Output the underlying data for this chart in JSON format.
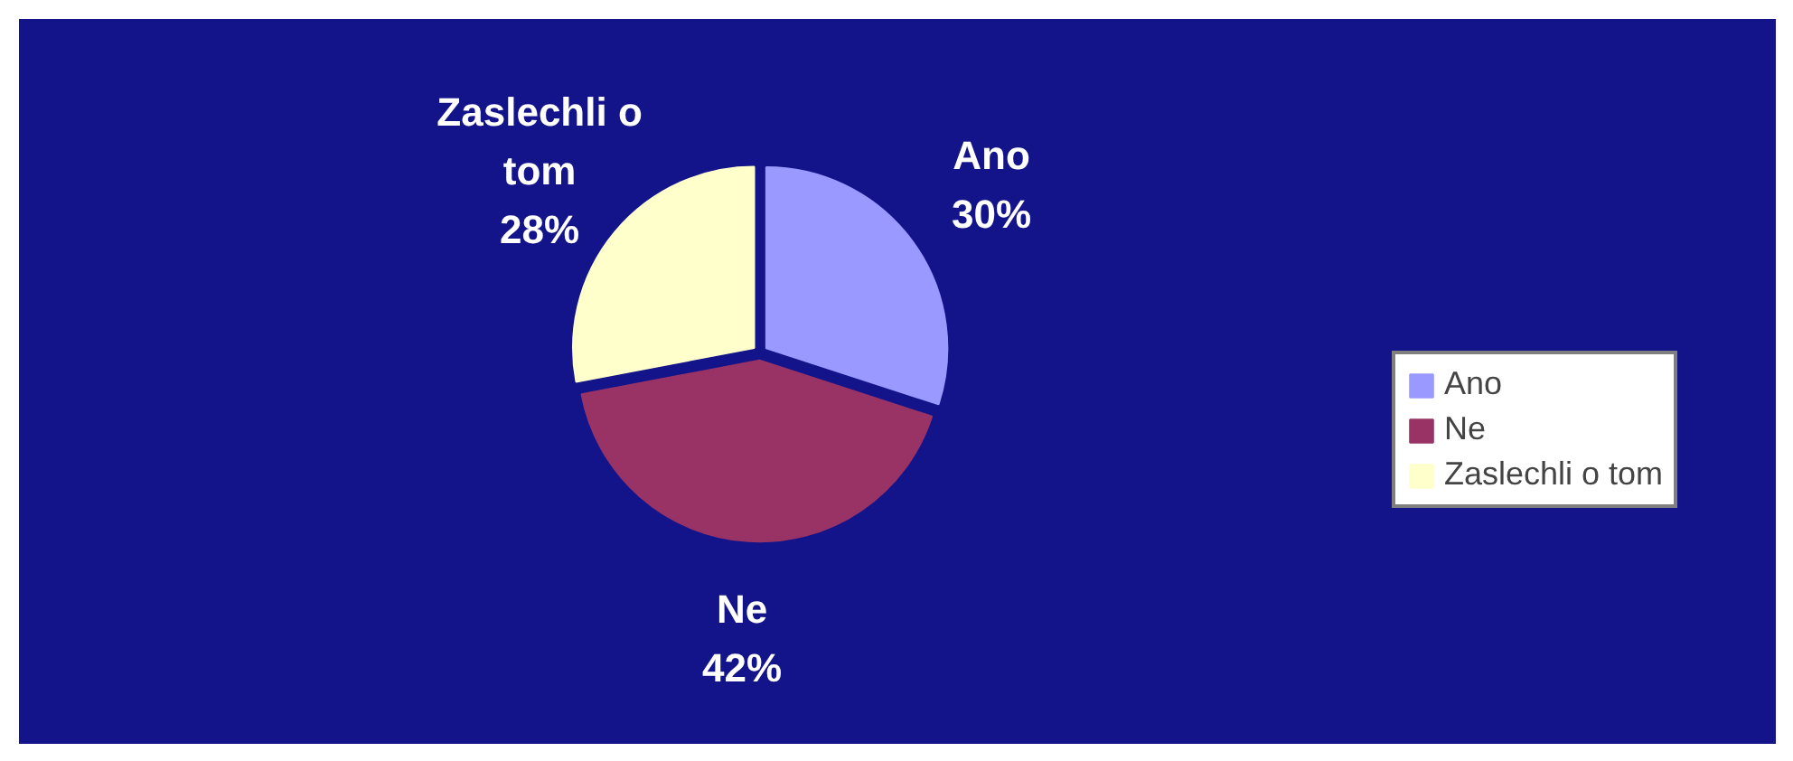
{
  "chart_data": {
    "type": "pie",
    "categories": [
      "Ano",
      "Ne",
      "Zaslechli o tom"
    ],
    "values": [
      30,
      42,
      28
    ],
    "colors": [
      "#9999ff",
      "#993366",
      "#ffffcc"
    ],
    "value_labels": [
      "30%",
      "42%",
      "28%"
    ],
    "legend": "right"
  }
}
